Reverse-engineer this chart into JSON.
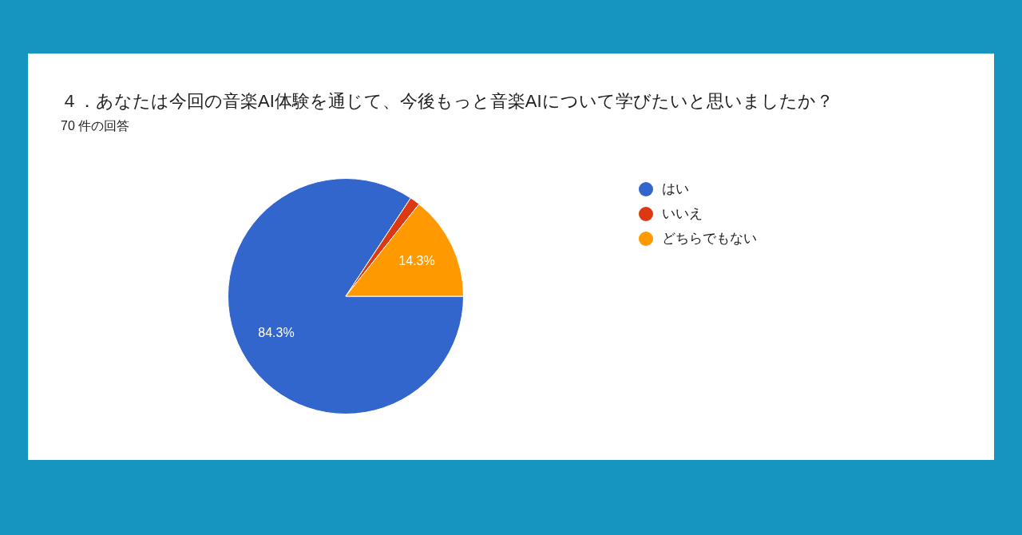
{
  "chart_data": {
    "type": "pie",
    "title": "４．あなたは今回の音楽AI体験を通じて、今後もっと音楽AIについて学びたいと思いましたか？",
    "subtitle": "70 件の回答",
    "categories": [
      "はい",
      "いいえ",
      "どちらでもない"
    ],
    "values": [
      84.3,
      1.4,
      14.3
    ],
    "colors": [
      "#3366cc",
      "#dc3912",
      "#ff9900"
    ],
    "value_labels": [
      "84.3%",
      null,
      "14.3%"
    ],
    "legend": "right"
  }
}
